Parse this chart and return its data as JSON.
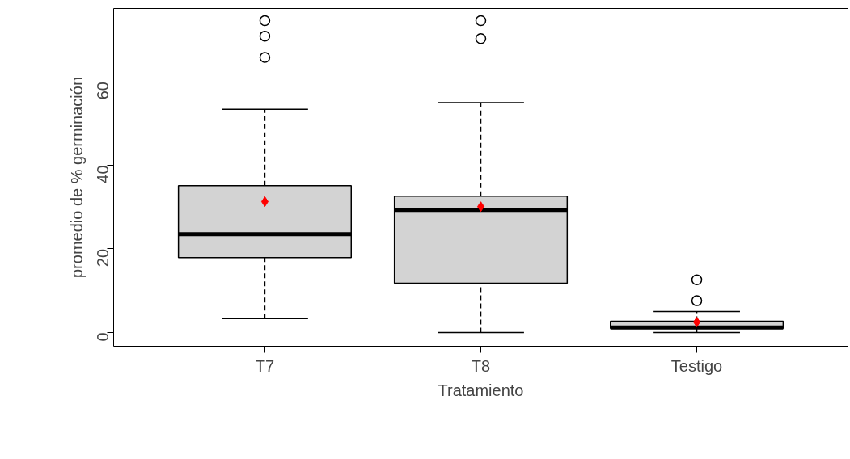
{
  "chart_data": {
    "type": "box",
    "xlabel": "Tratamiento",
    "ylabel": "promedio de % germinación",
    "categories": [
      "T7",
      "T8",
      "Testigo"
    ],
    "ylim": [
      -3.3,
      77.5
    ],
    "yticks": [
      0,
      20,
      40,
      60
    ],
    "grid": false,
    "color": "#d3d3d3",
    "marker": "diamond",
    "boxes": [
      {
        "low": 3.3,
        "q1": 17.9,
        "median": 23.5,
        "q3": 35.1,
        "high": 53.4,
        "mean": 31.3,
        "outliers": [
          74.6,
          70.9,
          65.8
        ]
      },
      {
        "low": 0,
        "q1": 11.8,
        "median": 29.3,
        "q3": 32.6,
        "high": 55,
        "mean": 30.1,
        "outliers": [
          74.6,
          70.3
        ]
      },
      {
        "low": 0,
        "q1": 1.0,
        "median": 1.2,
        "q3": 2.7,
        "high": 5.0,
        "mean": 2.5,
        "outliers": [
          12.6,
          7.6
        ]
      }
    ]
  }
}
